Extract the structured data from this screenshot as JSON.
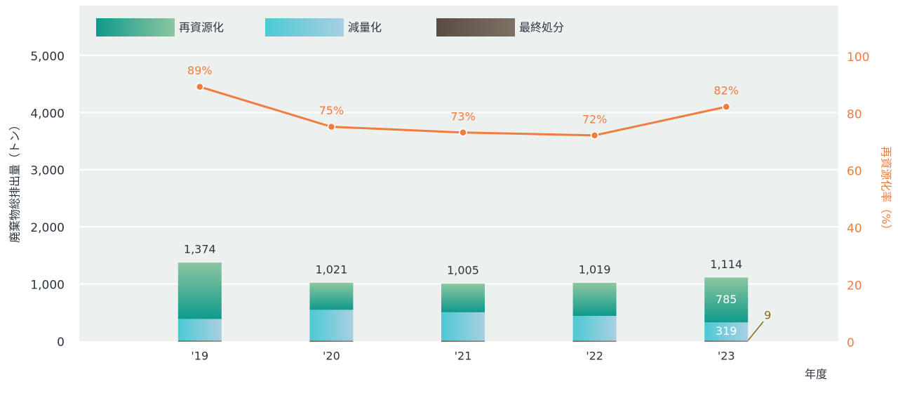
{
  "chart_data": {
    "type": "stacked_bar_line",
    "y_label": "廃棄物総排出量（トン）",
    "y2_label": "再資源化率（%）",
    "x_label": "年度",
    "categories": [
      "'19",
      "'20",
      "'21",
      "'22",
      "'23"
    ],
    "series": [
      {
        "name": "再資源化",
        "colors": [
          "#0f9a8c",
          "#8cc6a0"
        ],
        "values": [
          986,
          473,
          500,
          578,
          785
        ],
        "value_labels": [
          null,
          null,
          null,
          null,
          "785"
        ]
      },
      {
        "name": "減量化",
        "colors": [
          "#4ccad4",
          "#a9cfe2"
        ],
        "values": [
          378,
          540,
          497,
          433,
          319
        ],
        "value_labels": [
          null,
          null,
          null,
          null,
          "319"
        ]
      },
      {
        "name": "最終処分",
        "colors": [
          "#5a4c44",
          "#7e7062"
        ],
        "values": [
          10,
          8,
          8,
          8,
          9
        ],
        "value_labels": [
          null,
          null,
          null,
          null,
          "9"
        ]
      }
    ],
    "totals": [
      {
        "value": 1374,
        "label": "1,374"
      },
      {
        "value": 1021,
        "label": "1,021"
      },
      {
        "value": 1005,
        "label": "1,005"
      },
      {
        "value": 1019,
        "label": "1,019"
      },
      {
        "value": 1114,
        "label": "1,114"
      }
    ],
    "line": {
      "name": "再資源化率",
      "axis": "y2",
      "color": "#f07c3e",
      "values": [
        89,
        75,
        73,
        72,
        82
      ],
      "value_labels": [
        "89%",
        "75%",
        "73%",
        "72%",
        "82%"
      ]
    },
    "ylim": [
      0,
      5870
    ],
    "yticks": [
      0,
      {
        "value": 1000,
        "label": "1,000"
      },
      {
        "value": 2000,
        "label": "2,000"
      },
      {
        "value": 3000,
        "label": "3,000"
      },
      {
        "value": 4000,
        "label": "4,000"
      },
      {
        "value": 5000,
        "label": "5,000"
      }
    ],
    "y2lim": [
      0,
      117.4
    ],
    "y2ticks": [
      0,
      20,
      40,
      60,
      80,
      100
    ],
    "grid": true
  }
}
